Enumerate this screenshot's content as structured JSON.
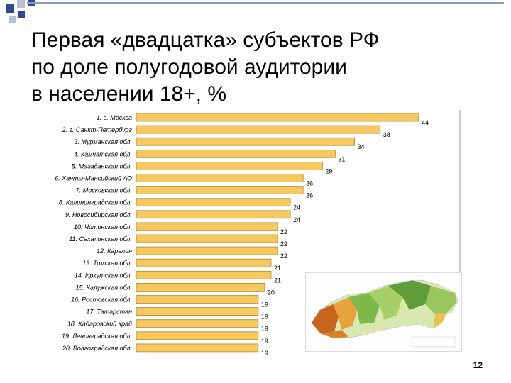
{
  "slide": {
    "title": "Первая «двадцатка» субъектов РФ\nпо доле полугодовой аудитории\nв населении 18+, %",
    "page_number": "12"
  },
  "colors": {
    "bar_fill": "#f5c860",
    "bar_edge": "#b08a2a",
    "square_blue": "#2d4b8e",
    "square_gray": "#b7c0cf"
  },
  "chart_data": {
    "type": "bar",
    "orientation": "horizontal",
    "categories": [
      "1. г. Москва",
      "2. г. Санкт-Петербург",
      "3. Мурманская обл.",
      "4. Камчатская обл.",
      "5. Магаданская обл.",
      "6. Ханты-Мансийский АО",
      "7. Московская обл.",
      "8. Калининградская обл.",
      "9. Новосибирская обл.",
      "10. Читинская обл.",
      "11. Сахалинская обл.",
      "12. Карелия",
      "13. Томская обл.",
      "14. Иркутская обл.",
      "15. Калужская обл.",
      "16. Ростовская обл.",
      "17. Татарстан",
      "18. Хабаровский край",
      "19. Ленинградская обл.",
      "20. Волгоградская обл."
    ],
    "values": [
      44,
      38,
      34,
      31,
      29,
      26,
      26,
      24,
      24,
      22,
      22,
      22,
      21,
      21,
      20,
      19,
      19,
      19,
      19,
      19
    ],
    "xlim": [
      0,
      44
    ],
    "grid": false,
    "legend": "none"
  }
}
